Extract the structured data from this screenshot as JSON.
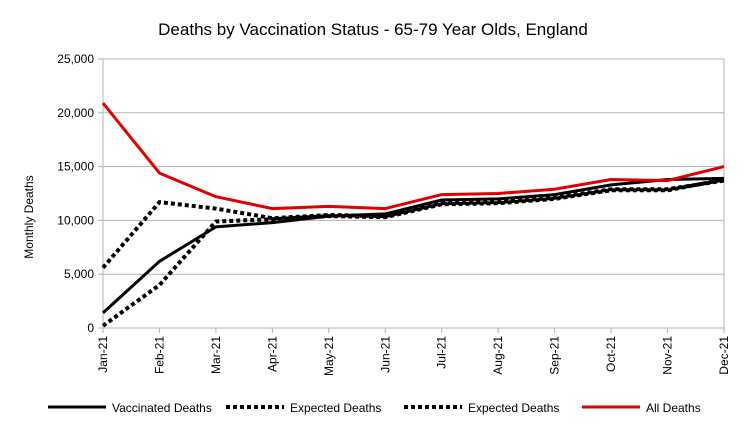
{
  "chart_data": {
    "type": "line",
    "title": "Deaths by Vaccination Status - 65-79 Year Olds, England",
    "xlabel": "",
    "ylabel": "Monthly Deaths",
    "ylim": [
      0,
      25000
    ],
    "yticks": [
      "0",
      "5,000",
      "10,000",
      "15,000",
      "20,000",
      "25,000"
    ],
    "categories": [
      "Jan-21",
      "Feb-21",
      "Mar-21",
      "Apr-21",
      "May-21",
      "Jun-21",
      "Jul-21",
      "Aug-21",
      "Sep-21",
      "Oct-21",
      "Nov-21",
      "Dec-21"
    ],
    "grid": true,
    "legend": "bottom",
    "series": [
      {
        "name": "Vaccinated Deaths",
        "color": "#000000",
        "style": "solid",
        "values": [
          1400,
          6200,
          9400,
          9800,
          10400,
          10600,
          11900,
          12000,
          12400,
          13300,
          13800,
          13900
        ]
      },
      {
        "name": "Expected Deaths",
        "color": "#000000",
        "style": "dotted",
        "values": [
          200,
          4000,
          9900,
          10100,
          10400,
          10300,
          11500,
          11600,
          12000,
          12800,
          12800,
          13800
        ]
      },
      {
        "name": "Expected Deaths",
        "color": "#000000",
        "style": "dotted",
        "values": [
          5600,
          11700,
          11100,
          10200,
          10500,
          10400,
          11600,
          11700,
          12100,
          12900,
          12900,
          13700
        ]
      },
      {
        "name": "All Deaths",
        "color": "#e00000",
        "style": "solid",
        "values": [
          20900,
          14400,
          12200,
          11100,
          11300,
          11100,
          12400,
          12500,
          12900,
          13800,
          13700,
          15000
        ]
      }
    ]
  }
}
